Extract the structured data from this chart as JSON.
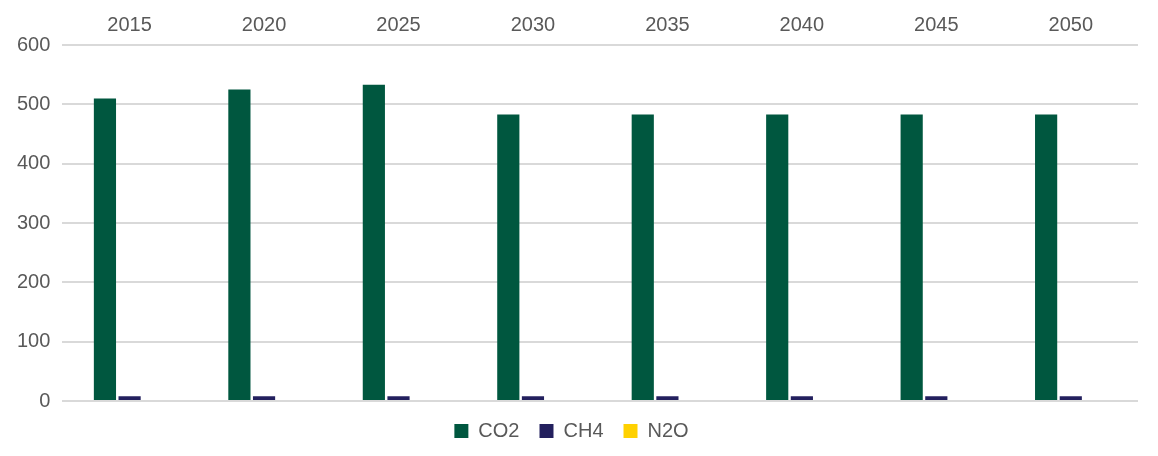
{
  "chart_data": {
    "type": "bar",
    "categories": [
      "2015",
      "2020",
      "2025",
      "2030",
      "2035",
      "2040",
      "2045",
      "2050"
    ],
    "series": [
      {
        "name": "CO2",
        "color": "#00573f",
        "values": [
          510,
          525,
          533,
          483,
          483,
          483,
          483,
          483
        ]
      },
      {
        "name": "CH4",
        "color": "#23205e",
        "values": [
          8,
          8,
          8,
          8,
          8,
          8,
          8,
          8
        ]
      },
      {
        "name": "N2O",
        "color": "#ffd100",
        "values": [
          0,
          0,
          0,
          0,
          0,
          0,
          0,
          0
        ]
      }
    ],
    "ylim": [
      0,
      600
    ],
    "yticks": [
      0,
      100,
      200,
      300,
      400,
      500,
      600
    ],
    "grid": "y",
    "legend": "bottom"
  }
}
